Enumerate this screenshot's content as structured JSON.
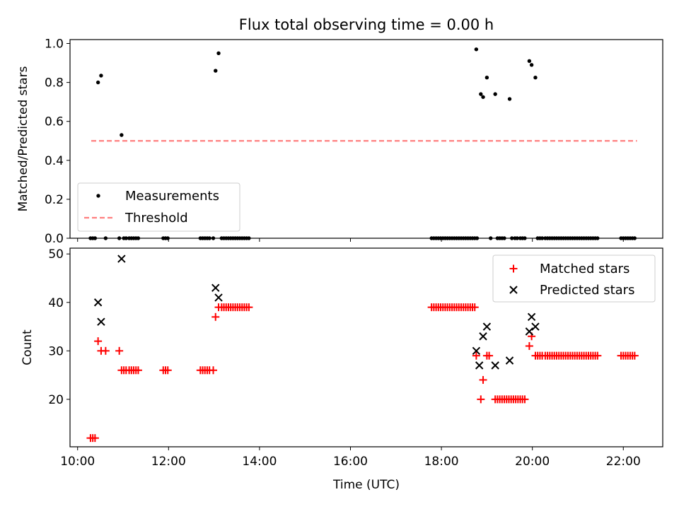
{
  "chart_data": [
    {
      "type": "scatter",
      "title": "Flux total observing time = 0.00 h",
      "xlabel": "",
      "ylabel": "Matched/Predicted stars",
      "xlim": [
        "09:50",
        "22:52"
      ],
      "ylim": [
        0,
        1.02
      ],
      "yticks": [
        0.0,
        0.2,
        0.4,
        0.6,
        0.8,
        1.0
      ],
      "ytick_labels": [
        "0.0",
        "0.2",
        "0.4",
        "0.6",
        "0.8",
        "1.0"
      ],
      "legend": "lower-left",
      "series": [
        {
          "name": "Measurements",
          "kind": "point",
          "color": "#000000",
          "points": [
            [
              "10:17",
              0
            ],
            [
              "10:20",
              0
            ],
            [
              "10:23",
              0
            ],
            [
              "10:27",
              0.8
            ],
            [
              "10:31",
              0.835
            ],
            [
              "10:37",
              0
            ],
            [
              "10:55",
              0
            ],
            [
              "10:58",
              0.53
            ],
            [
              "11:01",
              0
            ],
            [
              "11:04",
              0
            ],
            [
              "11:08",
              0
            ],
            [
              "11:11",
              0
            ],
            [
              "11:14",
              0
            ],
            [
              "11:17",
              0
            ],
            [
              "11:20",
              0
            ],
            [
              "11:53",
              0
            ],
            [
              "11:56",
              0
            ],
            [
              "11:59",
              0
            ],
            [
              "12:42",
              0
            ],
            [
              "12:45",
              0
            ],
            [
              "12:48",
              0
            ],
            [
              "12:51",
              0
            ],
            [
              "12:54",
              0
            ],
            [
              "12:59",
              0
            ],
            [
              "13:02",
              0.86
            ],
            [
              "13:06",
              0.95
            ],
            [
              "13:10",
              0
            ],
            [
              "13:13",
              0
            ],
            [
              "13:16",
              0
            ],
            [
              "13:19",
              0
            ],
            [
              "13:22",
              0
            ],
            [
              "13:25",
              0
            ],
            [
              "13:28",
              0
            ],
            [
              "13:31",
              0
            ],
            [
              "13:34",
              0
            ],
            [
              "13:37",
              0
            ],
            [
              "13:40",
              0
            ],
            [
              "13:43",
              0
            ],
            [
              "13:46",
              0
            ],
            [
              "17:47",
              0
            ],
            [
              "17:50",
              0
            ],
            [
              "17:53",
              0
            ],
            [
              "17:56",
              0
            ],
            [
              "17:59",
              0
            ],
            [
              "18:02",
              0
            ],
            [
              "18:05",
              0
            ],
            [
              "18:08",
              0
            ],
            [
              "18:11",
              0
            ],
            [
              "18:14",
              0
            ],
            [
              "18:17",
              0
            ],
            [
              "18:20",
              0
            ],
            [
              "18:23",
              0
            ],
            [
              "18:26",
              0
            ],
            [
              "18:29",
              0
            ],
            [
              "18:32",
              0
            ],
            [
              "18:35",
              0
            ],
            [
              "18:38",
              0
            ],
            [
              "18:41",
              0
            ],
            [
              "18:44",
              0
            ],
            [
              "18:47",
              0
            ],
            [
              "18:46",
              0.97
            ],
            [
              "18:52",
              0.74
            ],
            [
              "18:55",
              0.725
            ],
            [
              "19:00",
              0.825
            ],
            [
              "19:05",
              0
            ],
            [
              "19:11",
              0.74
            ],
            [
              "19:14",
              0
            ],
            [
              "19:17",
              0
            ],
            [
              "19:20",
              0
            ],
            [
              "19:23",
              0
            ],
            [
              "19:30",
              0.715
            ],
            [
              "19:33",
              0
            ],
            [
              "19:37",
              0
            ],
            [
              "19:40",
              0
            ],
            [
              "19:44",
              0
            ],
            [
              "19:47",
              0
            ],
            [
              "19:50",
              0
            ],
            [
              "19:56",
              0.91
            ],
            [
              "19:59",
              0.89
            ],
            [
              "20:04",
              0.825
            ],
            [
              "20:07",
              0
            ],
            [
              "20:10",
              0
            ],
            [
              "20:13",
              0
            ],
            [
              "20:17",
              0
            ],
            [
              "20:20",
              0
            ],
            [
              "20:23",
              0
            ],
            [
              "20:26",
              0
            ],
            [
              "20:29",
              0
            ],
            [
              "20:32",
              0
            ],
            [
              "20:35",
              0
            ],
            [
              "20:38",
              0
            ],
            [
              "20:41",
              0
            ],
            [
              "20:44",
              0
            ],
            [
              "20:47",
              0
            ],
            [
              "20:50",
              0
            ],
            [
              "20:53",
              0
            ],
            [
              "20:56",
              0
            ],
            [
              "20:59",
              0
            ],
            [
              "21:02",
              0
            ],
            [
              "21:05",
              0
            ],
            [
              "21:08",
              0
            ],
            [
              "21:11",
              0
            ],
            [
              "21:14",
              0
            ],
            [
              "21:17",
              0
            ],
            [
              "21:20",
              0
            ],
            [
              "21:23",
              0
            ],
            [
              "21:26",
              0
            ],
            [
              "21:57",
              0
            ],
            [
              "22:00",
              0
            ],
            [
              "22:03",
              0
            ],
            [
              "22:06",
              0
            ],
            [
              "22:09",
              0
            ],
            [
              "22:12",
              0
            ],
            [
              "22:15",
              0
            ]
          ]
        },
        {
          "name": "Threshold",
          "kind": "dashed-line",
          "color": "#ff7f7f",
          "points": [
            [
              "10:18",
              0.5
            ],
            [
              "22:18",
              0.5
            ]
          ]
        }
      ]
    },
    {
      "type": "scatter",
      "title": "",
      "xlabel": "Time (UTC)",
      "ylabel": "Count",
      "xlim": [
        "09:50",
        "22:52"
      ],
      "ylim": [
        10.2,
        51.2
      ],
      "yticks": [
        20,
        30,
        40,
        50
      ],
      "ytick_labels": [
        "20",
        "30",
        "40",
        "50"
      ],
      "xticks": [
        "10:00",
        "12:00",
        "14:00",
        "16:00",
        "18:00",
        "20:00",
        "22:00"
      ],
      "xtick_labels": [
        "10:00",
        "12:00",
        "14:00",
        "16:00",
        "18:00",
        "20:00",
        "22:00"
      ],
      "legend": "top-right",
      "series": [
        {
          "name": "Matched stars",
          "kind": "plus",
          "color": "#ff0000",
          "points": [
            [
              "10:17",
              12
            ],
            [
              "10:20",
              12
            ],
            [
              "10:23",
              12
            ],
            [
              "10:27",
              32
            ],
            [
              "10:31",
              30
            ],
            [
              "10:37",
              30
            ],
            [
              "10:55",
              30
            ],
            [
              "10:58",
              26
            ],
            [
              "11:01",
              26
            ],
            [
              "11:04",
              26
            ],
            [
              "11:08",
              26
            ],
            [
              "11:11",
              26
            ],
            [
              "11:14",
              26
            ],
            [
              "11:17",
              26
            ],
            [
              "11:20",
              26
            ],
            [
              "11:53",
              26
            ],
            [
              "11:56",
              26
            ],
            [
              "11:59",
              26
            ],
            [
              "12:42",
              26
            ],
            [
              "12:45",
              26
            ],
            [
              "12:48",
              26
            ],
            [
              "12:51",
              26
            ],
            [
              "12:54",
              26
            ],
            [
              "12:59",
              26
            ],
            [
              "13:02",
              37
            ],
            [
              "13:06",
              39
            ],
            [
              "13:10",
              39
            ],
            [
              "13:13",
              39
            ],
            [
              "13:16",
              39
            ],
            [
              "13:19",
              39
            ],
            [
              "13:22",
              39
            ],
            [
              "13:25",
              39
            ],
            [
              "13:28",
              39
            ],
            [
              "13:31",
              39
            ],
            [
              "13:34",
              39
            ],
            [
              "13:37",
              39
            ],
            [
              "13:40",
              39
            ],
            [
              "13:43",
              39
            ],
            [
              "13:46",
              39
            ],
            [
              "17:47",
              39
            ],
            [
              "17:50",
              39
            ],
            [
              "17:53",
              39
            ],
            [
              "17:56",
              39
            ],
            [
              "17:59",
              39
            ],
            [
              "18:02",
              39
            ],
            [
              "18:05",
              39
            ],
            [
              "18:08",
              39
            ],
            [
              "18:11",
              39
            ],
            [
              "18:14",
              39
            ],
            [
              "18:17",
              39
            ],
            [
              "18:20",
              39
            ],
            [
              "18:23",
              39
            ],
            [
              "18:26",
              39
            ],
            [
              "18:29",
              39
            ],
            [
              "18:32",
              39
            ],
            [
              "18:35",
              39
            ],
            [
              "18:38",
              39
            ],
            [
              "18:41",
              39
            ],
            [
              "18:44",
              39
            ],
            [
              "18:46",
              29
            ],
            [
              "18:52",
              20
            ],
            [
              "18:55",
              24
            ],
            [
              "19:00",
              29
            ],
            [
              "19:03",
              29
            ],
            [
              "19:11",
              20
            ],
            [
              "19:14",
              20
            ],
            [
              "19:17",
              20
            ],
            [
              "19:20",
              20
            ],
            [
              "19:23",
              20
            ],
            [
              "19:26",
              20
            ],
            [
              "19:29",
              20
            ],
            [
              "19:32",
              20
            ],
            [
              "19:35",
              20
            ],
            [
              "19:38",
              20
            ],
            [
              "19:41",
              20
            ],
            [
              "19:44",
              20
            ],
            [
              "19:47",
              20
            ],
            [
              "19:50",
              20
            ],
            [
              "19:56",
              31
            ],
            [
              "19:59",
              33
            ],
            [
              "20:04",
              29
            ],
            [
              "20:07",
              29
            ],
            [
              "20:10",
              29
            ],
            [
              "20:13",
              29
            ],
            [
              "20:17",
              29
            ],
            [
              "20:20",
              29
            ],
            [
              "20:23",
              29
            ],
            [
              "20:26",
              29
            ],
            [
              "20:29",
              29
            ],
            [
              "20:32",
              29
            ],
            [
              "20:35",
              29
            ],
            [
              "20:38",
              29
            ],
            [
              "20:41",
              29
            ],
            [
              "20:44",
              29
            ],
            [
              "20:47",
              29
            ],
            [
              "20:50",
              29
            ],
            [
              "20:53",
              29
            ],
            [
              "20:56",
              29
            ],
            [
              "20:59",
              29
            ],
            [
              "21:02",
              29
            ],
            [
              "21:05",
              29
            ],
            [
              "21:08",
              29
            ],
            [
              "21:11",
              29
            ],
            [
              "21:14",
              29
            ],
            [
              "21:17",
              29
            ],
            [
              "21:20",
              29
            ],
            [
              "21:23",
              29
            ],
            [
              "21:26",
              29
            ],
            [
              "21:57",
              29
            ],
            [
              "22:00",
              29
            ],
            [
              "22:03",
              29
            ],
            [
              "22:06",
              29
            ],
            [
              "22:09",
              29
            ],
            [
              "22:12",
              29
            ],
            [
              "22:15",
              29
            ]
          ]
        },
        {
          "name": "Predicted stars",
          "kind": "x",
          "color": "#000000",
          "points": [
            [
              "10:27",
              40
            ],
            [
              "10:31",
              36
            ],
            [
              "10:58",
              49
            ],
            [
              "13:02",
              43
            ],
            [
              "13:06",
              41
            ],
            [
              "18:46",
              30
            ],
            [
              "18:50",
              27
            ],
            [
              "18:55",
              33
            ],
            [
              "19:00",
              35
            ],
            [
              "19:11",
              27
            ],
            [
              "19:30",
              28
            ],
            [
              "19:56",
              34
            ],
            [
              "19:59",
              37
            ],
            [
              "20:04",
              35
            ]
          ]
        }
      ]
    }
  ]
}
